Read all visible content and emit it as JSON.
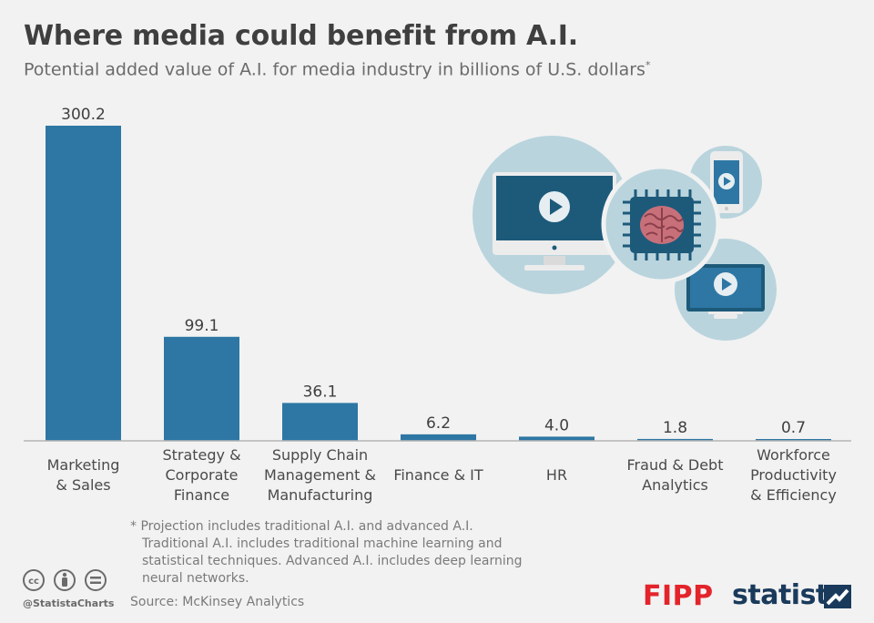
{
  "header": {
    "title": "Where media could benefit from A.I.",
    "subtitle": "Potential added value of A.I. for media industry in billions of U.S. dollars",
    "subtitle_mark": "*"
  },
  "chart_data": {
    "type": "bar",
    "title": "Where media could benefit from A.I.",
    "subtitle": "Potential added value of A.I. for media industry in billions of U.S. dollars",
    "unit": "billions of U.S. dollars",
    "categories": [
      [
        "Marketing",
        "& Sales"
      ],
      [
        "Strategy &",
        "Corporate",
        "Finance"
      ],
      [
        "Supply Chain",
        "Management &",
        "Manufacturing"
      ],
      [
        "Finance & IT"
      ],
      [
        "HR"
      ],
      [
        "Fraud & Debt",
        "Analytics"
      ],
      [
        "Workforce",
        "Productivity",
        "& Efficiency"
      ]
    ],
    "values": [
      300.2,
      99.1,
      36.1,
      6.2,
      4.0,
      1.8,
      0.7
    ],
    "value_labels": [
      "300.2",
      "99.1",
      "36.1",
      "6.2",
      "4.0",
      "1.8",
      "0.7"
    ],
    "ylim": [
      0,
      300.2
    ],
    "grid": false,
    "bar_color": "#2e77a4",
    "axis_color": "#b5b5b5"
  },
  "footer": {
    "footnote_mark": "*",
    "footnote_lead": "Projection includes traditional A.I. and advanced A.I.",
    "footnote_body": "Traditional A.I. includes traditional machine learning and statistical techniques. Advanced A.I. includes deep learning neural networks.",
    "source": "Source: McKinsey Analytics",
    "handle": "@StatistaCharts",
    "partner_logo": "FIPP",
    "brand_logo": "statista"
  },
  "illustration": {
    "icons": [
      "desktop-monitor-play-icon",
      "ai-chip-brain-icon",
      "smartphone-play-icon",
      "laptop-play-icon"
    ]
  },
  "colors": {
    "background": "#f2f2f2",
    "circle_fill": "#b9d4dd",
    "navy": "#1d5a7a",
    "brain": "#c8707a",
    "fipp_red": "#e3242b",
    "statista_navy": "#1a3a5c"
  }
}
